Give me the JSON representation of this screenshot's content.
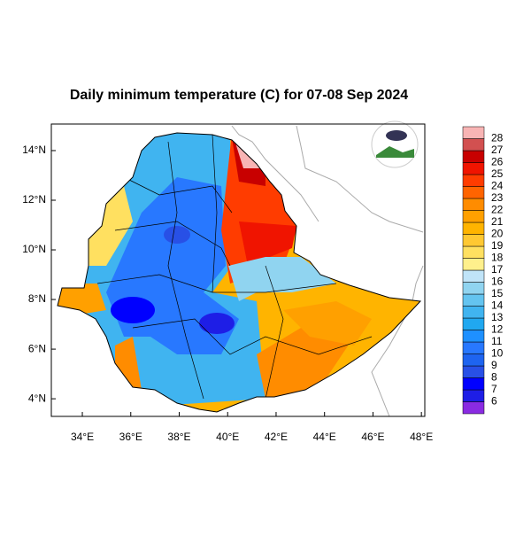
{
  "title": "Daily minimum temperature (C) for 07-08 Sep 2024",
  "map": {
    "xlim": [
      32.72,
      48.14
    ],
    "ylim": [
      3.29,
      15.07
    ],
    "xticks": [
      {
        "value": 34,
        "label": "34°E"
      },
      {
        "value": 36,
        "label": "36°E"
      },
      {
        "value": 38,
        "label": "38°E"
      },
      {
        "value": 40,
        "label": "40°E"
      },
      {
        "value": 42,
        "label": "42°E"
      },
      {
        "value": 44,
        "label": "44°E"
      },
      {
        "value": 46,
        "label": "46°E"
      },
      {
        "value": 48,
        "label": "48°E"
      }
    ],
    "yticks": [
      {
        "value": 4,
        "label": "4°N"
      },
      {
        "value": 6,
        "label": "6°N"
      },
      {
        "value": 8,
        "label": "8°N"
      },
      {
        "value": 10,
        "label": "10°N"
      },
      {
        "value": 12,
        "label": "12°N"
      },
      {
        "value": 14,
        "label": "14°N"
      }
    ]
  },
  "colorbar": {
    "levels": [
      6,
      7,
      8,
      9,
      10,
      11,
      12,
      13,
      14,
      15,
      16,
      17,
      18,
      19,
      20,
      21,
      22,
      23,
      24,
      25,
      26,
      27,
      28
    ],
    "colors": [
      "#8a2be2",
      "#1e1ee6",
      "#0000ff",
      "#2850e6",
      "#1e64f0",
      "#2878ff",
      "#1e90ff",
      "#20a8f0",
      "#40b4f0",
      "#64c4f0",
      "#90d4f0",
      "#c0e4f8",
      "#fff08c",
      "#ffe060",
      "#ffc832",
      "#ffb400",
      "#ffa000",
      "#ff8c00",
      "#ff6400",
      "#ff3c00",
      "#f01400",
      "#c80000",
      "#d25050",
      "#f8b4b4"
    ]
  }
}
